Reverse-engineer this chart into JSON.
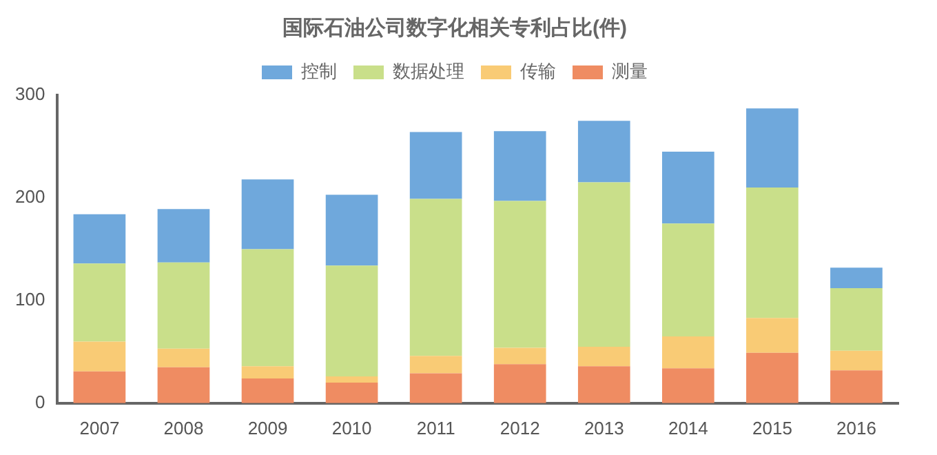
{
  "chart_data": {
    "type": "bar",
    "title": "国际石油公司数字化相关专利占比(件)",
    "categories": [
      "2007",
      "2008",
      "2009",
      "2010",
      "2011",
      "2012",
      "2013",
      "2014",
      "2015",
      "2016"
    ],
    "stacked": true,
    "series": [
      {
        "name": "测量",
        "color": "#ef8c62",
        "values": [
          31,
          35,
          24,
          20,
          29,
          38,
          36,
          34,
          49,
          32
        ]
      },
      {
        "name": "传输",
        "color": "#f9cb75",
        "values": [
          29,
          18,
          12,
          6,
          17,
          16,
          19,
          31,
          34,
          19
        ]
      },
      {
        "name": "数据处理",
        "color": "#c9df8a",
        "values": [
          76,
          84,
          114,
          108,
          153,
          143,
          160,
          110,
          127,
          61
        ]
      },
      {
        "name": "控制",
        "color": "#6fa8dc",
        "values": [
          48,
          52,
          68,
          69,
          65,
          68,
          60,
          70,
          77,
          20
        ]
      }
    ],
    "ylim": [
      0,
      300
    ],
    "yticks": [
      0,
      100,
      200,
      300
    ],
    "grid": false,
    "legend": "top"
  }
}
